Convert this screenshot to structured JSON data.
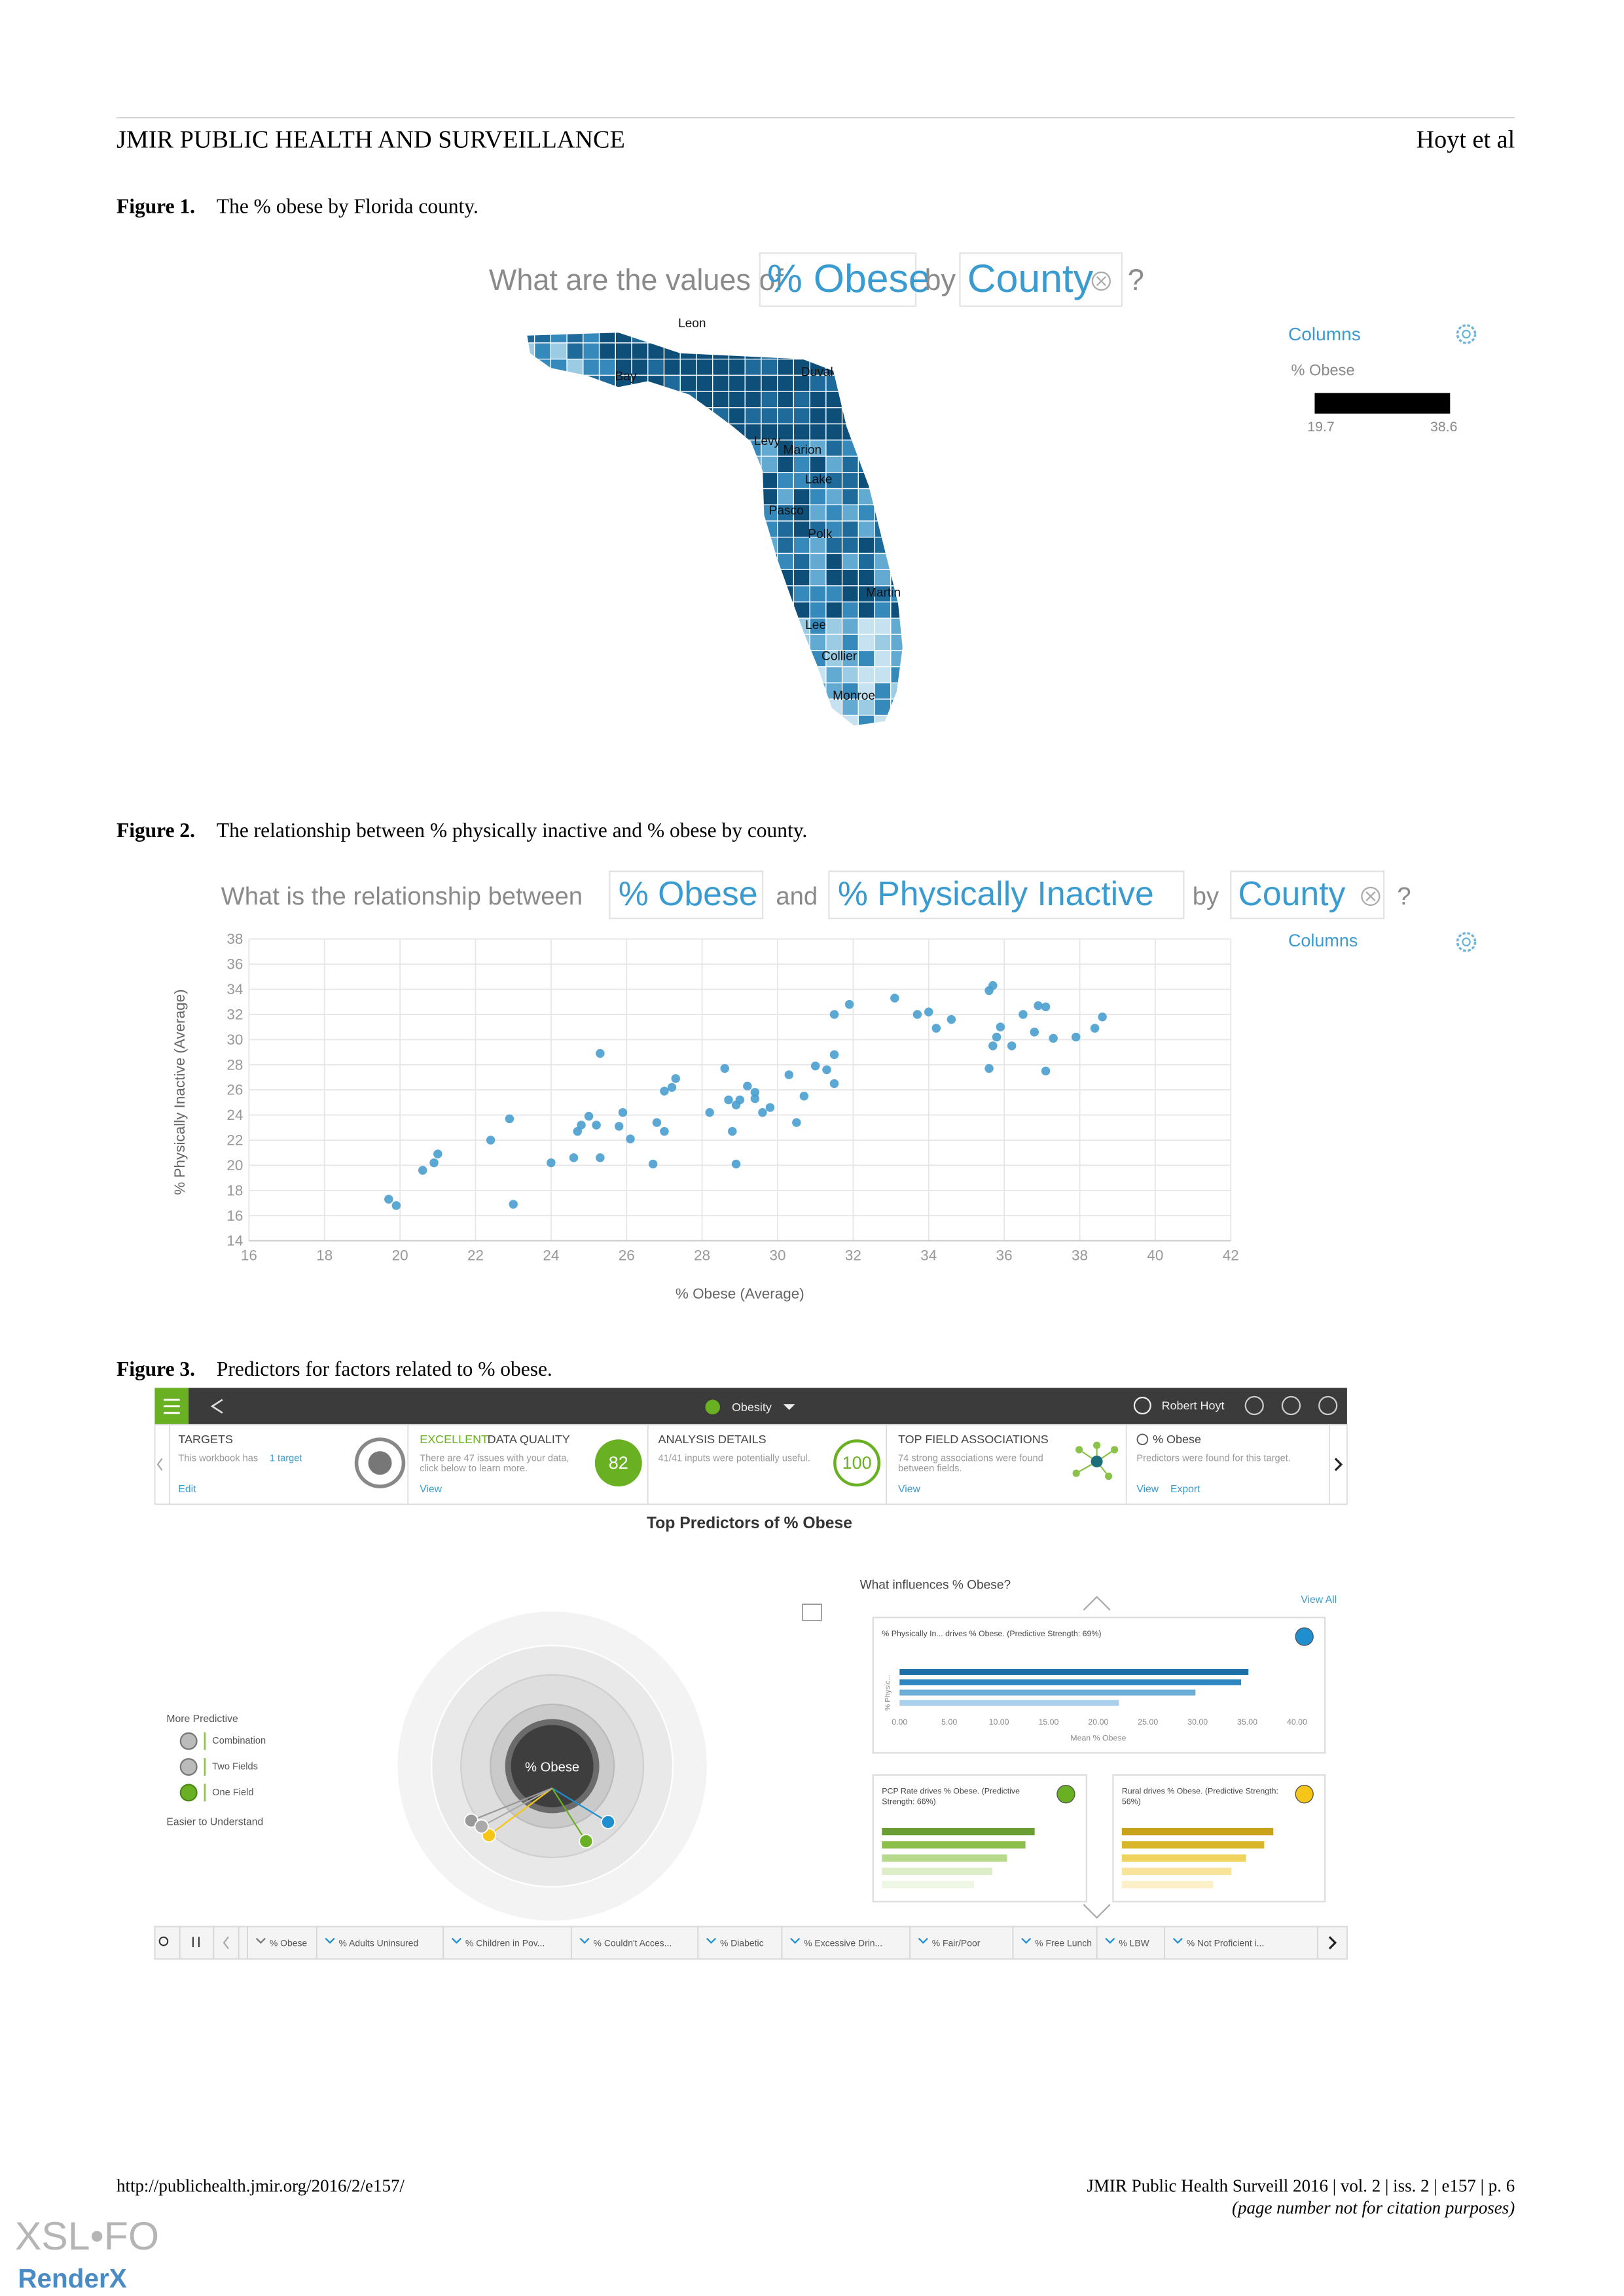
{
  "header": {
    "journal": "JMIR PUBLIC HEALTH AND SURVEILLANCE",
    "authors": "Hoyt et al"
  },
  "figures": [
    {
      "label": "Figure 1.",
      "caption": "The % obese by Florida county."
    },
    {
      "label": "Figure 2.",
      "caption": "The relationship between % physically inactive and % obese by county."
    },
    {
      "label": "Figure 3.",
      "caption": "Predictors for factors related to % obese."
    }
  ],
  "figure1": {
    "question": {
      "prefix": "What are the values of",
      "measure": "% Obese",
      "by": "by",
      "dimension": "County",
      "help": "?"
    },
    "county_labels": [
      "Leon",
      "Bay",
      "Duval",
      "Levy",
      "Marion",
      "Lake",
      "Pasco",
      "Polk",
      "Martin",
      "Lee",
      "Collier",
      "Monroe"
    ],
    "legend": {
      "title": "Columns",
      "field": "% Obese",
      "min": 19.7,
      "max": 38.6
    }
  },
  "figure2": {
    "question": {
      "prefix": "What is the relationship between",
      "measure1": "% Obese",
      "and": "and",
      "measure2": "% Physically Inactive",
      "by": "by",
      "dimension": "County",
      "help": "?"
    },
    "panel": "Columns"
  },
  "chart_data": {
    "type": "scatter",
    "x_label": "% Obese (Average)",
    "y_label": "% Physically Inactive (Average)",
    "color": "#4a9fd0",
    "x": [
      19.7,
      19.9,
      20.6,
      20.9,
      21.0,
      22.4,
      22.9,
      23.0,
      24.0,
      24.6,
      24.7,
      24.8,
      25.0,
      25.2,
      25.3,
      25.3,
      25.8,
      25.9,
      26.1,
      26.7,
      26.8,
      27.0,
      27.0,
      27.2,
      27.3,
      28.2,
      28.6,
      28.7,
      28.8,
      28.9,
      28.9,
      29.0,
      29.2,
      29.4,
      29.4,
      29.6,
      29.8,
      30.3,
      30.5,
      30.7,
      31.0,
      31.3,
      31.5,
      31.5,
      31.5,
      31.9,
      33.1,
      33.7,
      34.0,
      34.2,
      34.6,
      35.6,
      35.7,
      35.6,
      35.7,
      35.8,
      35.9,
      36.2,
      36.5,
      36.8,
      36.9,
      37.1,
      37.1,
      37.3,
      37.9,
      38.4,
      38.6
    ],
    "values": [
      17.3,
      16.8,
      19.6,
      20.2,
      20.9,
      22.0,
      23.7,
      16.9,
      20.2,
      20.6,
      22.7,
      23.2,
      23.9,
      23.2,
      28.9,
      20.6,
      23.1,
      24.2,
      22.1,
      20.1,
      23.4,
      22.7,
      25.9,
      26.2,
      26.9,
      24.2,
      27.7,
      25.2,
      22.7,
      24.8,
      20.1,
      25.2,
      26.3,
      25.8,
      25.3,
      24.2,
      24.6,
      27.2,
      23.4,
      25.5,
      27.9,
      27.6,
      32.0,
      28.8,
      26.5,
      32.8,
      33.3,
      32.0,
      32.2,
      30.9,
      31.6,
      33.9,
      34.3,
      27.7,
      29.5,
      30.2,
      31.0,
      29.5,
      32.0,
      30.6,
      32.7,
      32.6,
      27.5,
      30.1,
      30.2,
      30.9,
      31.8
    ],
    "xlim": [
      16,
      42
    ],
    "ylim": [
      14,
      38
    ],
    "xticks": [
      16,
      18,
      20,
      22,
      24,
      26,
      28,
      30,
      32,
      34,
      36,
      38,
      40,
      42
    ],
    "yticks": [
      14,
      16,
      18,
      20,
      22,
      24,
      26,
      28,
      30,
      32,
      34,
      36,
      38
    ],
    "grid": true
  },
  "figure3": {
    "topbar": {
      "workbook": "Obesity",
      "user": "Robert Hoyt"
    },
    "cards": [
      {
        "title": "TARGETS",
        "text": [
          "This workbook has"
        ],
        "link": "1 target",
        "actions": [
          "Edit"
        ]
      },
      {
        "highlight": "EXCELLENT",
        "title": "DATA QUALITY",
        "text": [
          "There are 47 issues with your data,",
          "click below to learn more."
        ],
        "actions": [
          "View"
        ],
        "badge": 82
      },
      {
        "title": "ANALYSIS DETAILS",
        "text": [
          "41/41 inputs were potentially useful."
        ],
        "badge": 100
      },
      {
        "title": "TOP FIELD ASSOCIATIONS",
        "text": [
          "74 strong associations were found",
          "between fields."
        ],
        "actions": [
          "View"
        ]
      },
      {
        "title": "% Obese",
        "text": [
          "Predictors were found for this target."
        ],
        "actions": [
          "View",
          "Export"
        ]
      }
    ],
    "predictors": {
      "title": "Top Predictors of % Obese",
      "question": "What influences % Obese?",
      "view_all": "View All",
      "center": "% Obese",
      "legend": {
        "top": "More Predictive",
        "items": [
          "Combination",
          "Two Fields",
          "One Field"
        ],
        "bottom": "Easier to Understand"
      },
      "cards": [
        {
          "title": [
            "% Physically In... drives % Obese. (Predictive Strength: 69%)"
          ]
        },
        {
          "title": [
            "PCP Rate drives % Obese. (Predictive",
            "Strength: 66%)"
          ]
        },
        {
          "title": [
            "Rural drives % Obese. (Predictive Strength:",
            "56%)"
          ]
        }
      ],
      "chart": {
        "ticks": [
          "0.00",
          "5.00",
          "10.00",
          "15.00",
          "20.00",
          "25.00",
          "30.00",
          "35.00",
          "40.00"
        ],
        "x_label": "Mean % Obese",
        "y_label": "% Physic..."
      }
    },
    "tabs": [
      "% Obese",
      "% Adults Uninsured",
      "% Children in Pov...",
      "% Couldn't Acces...",
      "% Diabetic",
      "% Excessive Drin...",
      "% Fair/Poor",
      "% Free Lunch",
      "% LBW",
      "% Not Proficient i..."
    ]
  },
  "footer": {
    "url": "http://publichealth.jmir.org/2016/2/e157/",
    "citation": "JMIR Public Health Surveill 2016 | vol. 2 | iss. 2 | e157 | p. 6",
    "note": "(page number not for citation purposes)",
    "logo_top": "XSL•FO",
    "logo_bottom": "RenderX"
  }
}
